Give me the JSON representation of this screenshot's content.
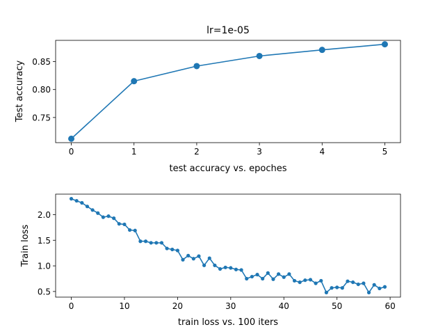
{
  "chart_data": [
    {
      "type": "line",
      "title": "lr=1e-05",
      "xlabel": "test accuracy vs. epoches",
      "ylabel": "Test accuracy",
      "x": [
        0,
        1,
        2,
        3,
        4,
        5
      ],
      "y": [
        0.712,
        0.815,
        0.842,
        0.86,
        0.871,
        0.881
      ],
      "xlim": [
        -0.25,
        5.25
      ],
      "ylim": [
        0.705,
        0.888
      ],
      "xticks": [
        0,
        1,
        2,
        3,
        4,
        5
      ],
      "xtick_labels": [
        "0",
        "1",
        "2",
        "3",
        "4",
        "5"
      ],
      "yticks": [
        0.75,
        0.8,
        0.85
      ],
      "ytick_labels": [
        "0.75",
        "0.80",
        "0.85"
      ],
      "grid": false,
      "color": "#1f77b4",
      "marker": "circle"
    },
    {
      "type": "line",
      "title": "",
      "xlabel": "train loss vs. 100 iters",
      "ylabel": "Train loss",
      "x": [
        0,
        1,
        2,
        3,
        4,
        5,
        6,
        7,
        8,
        9,
        10,
        11,
        12,
        13,
        14,
        15,
        16,
        17,
        18,
        19,
        20,
        21,
        22,
        23,
        24,
        25,
        26,
        27,
        28,
        29,
        30,
        31,
        32,
        33,
        34,
        35,
        36,
        37,
        38,
        39,
        40,
        41,
        42,
        43,
        44,
        45,
        46,
        47,
        48,
        49,
        50,
        51,
        52,
        53,
        54,
        55,
        56,
        57,
        58,
        59
      ],
      "y": [
        2.31,
        2.27,
        2.23,
        2.16,
        2.09,
        2.03,
        1.95,
        1.97,
        1.93,
        1.82,
        1.81,
        1.7,
        1.69,
        1.48,
        1.48,
        1.45,
        1.45,
        1.45,
        1.34,
        1.32,
        1.3,
        1.12,
        1.2,
        1.14,
        1.19,
        1.01,
        1.15,
        1.01,
        0.94,
        0.97,
        0.96,
        0.93,
        0.92,
        0.75,
        0.79,
        0.83,
        0.75,
        0.86,
        0.74,
        0.84,
        0.78,
        0.84,
        0.71,
        0.68,
        0.72,
        0.73,
        0.66,
        0.71,
        0.48,
        0.57,
        0.58,
        0.57,
        0.7,
        0.68,
        0.64,
        0.66,
        0.48,
        0.63,
        0.56,
        0.59
      ],
      "xlim": [
        -2.95,
        61.95
      ],
      "ylim": [
        0.39,
        2.4
      ],
      "xticks": [
        0,
        10,
        20,
        30,
        40,
        50,
        60
      ],
      "xtick_labels": [
        "0",
        "10",
        "20",
        "30",
        "40",
        "50",
        "60"
      ],
      "yticks": [
        0.5,
        1.0,
        1.5,
        2.0
      ],
      "ytick_labels": [
        "0.5",
        "1.0",
        "1.5",
        "2.0"
      ],
      "grid": false,
      "color": "#1f77b4",
      "marker": "small-circle"
    }
  ]
}
